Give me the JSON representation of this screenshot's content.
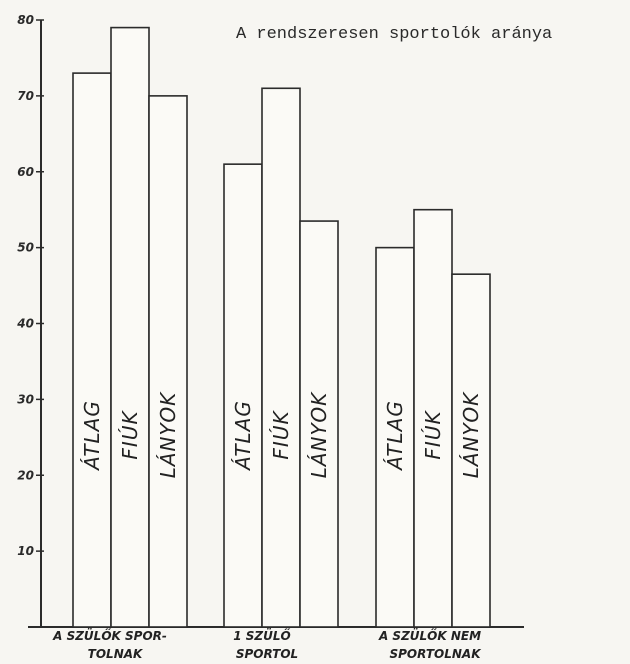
{
  "chart_data": {
    "type": "bar",
    "title": "A rendszeresen sportolók aránya",
    "ylim": [
      0,
      80
    ],
    "yticks": [
      {
        "value": 10,
        "label": "10"
      },
      {
        "value": 20,
        "label": "20"
      },
      {
        "value": 30,
        "label": "30"
      },
      {
        "value": 40,
        "label": "40"
      },
      {
        "value": 50,
        "label": "50"
      },
      {
        "value": 60,
        "label": "60"
      },
      {
        "value": 70,
        "label": "70"
      },
      {
        "value": 80,
        "label": "80"
      }
    ],
    "series_names": [
      "ÁTLAG",
      "FIÚK",
      "LÁNYOK"
    ],
    "groups": [
      {
        "label_line1": "A SZÜLŐK SPOR-",
        "label_line2": "TOLNAK",
        "values": [
          73,
          79,
          70
        ]
      },
      {
        "label_line1": "1 SZÜLŐ",
        "label_line2": "SPORTOL",
        "values": [
          61,
          71,
          53.5
        ]
      },
      {
        "label_line1": "A SZÜLŐK NEM",
        "label_line2": "SPORTOLNAK",
        "values": [
          50,
          55,
          46.5
        ]
      }
    ],
    "colors": {
      "bar_fill": "#fbfaf6",
      "stroke": "#2b2b2b",
      "background": "#f7f6f2"
    }
  }
}
